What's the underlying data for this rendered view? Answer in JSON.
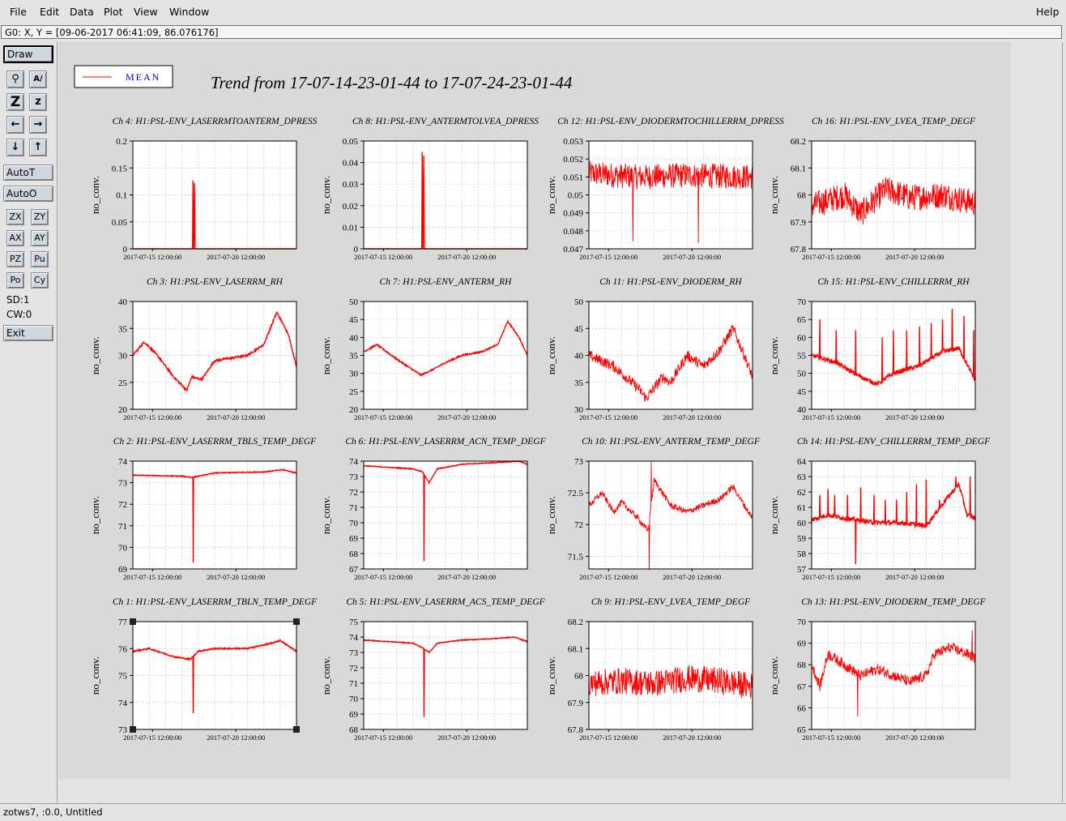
{
  "menubar": {
    "items": [
      "File",
      "Edit",
      "Data",
      "Plot",
      "View",
      "Window"
    ],
    "help": "Help"
  },
  "status_line": "G0: X, Y = [09-06-2017 06:41:09, 86.076176]",
  "toolbar": {
    "draw": "Draw",
    "autot": "AutoT",
    "autoo": "AutoO",
    "zx": "ZX",
    "zy": "ZY",
    "ax": "AX",
    "ay": "AY",
    "pz": "PZ",
    "pu": "Pu",
    "po": "Po",
    "cy": "Cy",
    "sd": "SD:1",
    "cw": "CW:0",
    "exit": "Exit",
    "icons": [
      "magnifier-icon",
      "text-size-icon",
      "zoom-in-z-icon",
      "zoom-out-z-icon",
      "arrow-left-icon",
      "arrow-right-icon",
      "arrow-down-icon",
      "arrow-up-icon"
    ]
  },
  "footer": "zotws7, :0.0, Untitled",
  "figure": {
    "title": "Trend from 17-07-14-23-01-44 to 17-07-24-23-01-44",
    "legend_label": "MEAN",
    "series_color": "#ff0000",
    "ylabel": "no_conv.",
    "xticks": [
      "2017-07-15 12:00:00",
      "2017-07-20 12:00:00"
    ]
  },
  "chart_data": [
    {
      "type": "line",
      "title": "Ch 4: H1:PSL-ENV_LASERRMTOANTERM_DPRESS",
      "ylabel": "no_conv.",
      "yticks": [
        "0",
        "0.05",
        "0.1",
        "0.15",
        "0.2"
      ],
      "ylim": [
        0,
        0.2
      ],
      "kind": "spike",
      "base": 0,
      "spike_at": 0.37,
      "spike_value": 0.127
    },
    {
      "type": "line",
      "title": "Ch 8: H1:PSL-ENV_ANTERMTOLVEA_DPRESS",
      "ylabel": "no_conv.",
      "yticks": [
        "0",
        "0.01",
        "0.02",
        "0.03",
        "0.04",
        "0.05"
      ],
      "ylim": [
        0,
        0.05
      ],
      "kind": "spike",
      "base": 0,
      "spike_at": 0.36,
      "spike_value": 0.045
    },
    {
      "type": "line",
      "title": "Ch 12: H1:PSL-ENV_DIODERMTOCHILLERRM_DPRESS",
      "ylabel": "no_conv.",
      "yticks": [
        "0.047",
        "0.048",
        "0.049",
        "0.05",
        "0.051",
        "0.052",
        "0.053"
      ],
      "ylim": [
        0.047,
        0.053
      ],
      "kind": "noisy",
      "anchors": [
        [
          0,
          0.0512
        ],
        [
          0.3,
          0.051
        ],
        [
          0.6,
          0.0511
        ],
        [
          1,
          0.051
        ]
      ],
      "noise": 0.0007,
      "dips": [
        [
          0.27,
          0.0474
        ],
        [
          0.67,
          0.0473
        ]
      ]
    },
    {
      "type": "line",
      "title": "Ch 16: H1:PSL-ENV_LVEA_TEMP_DEGF",
      "ylabel": "no_conv.",
      "yticks": [
        "67.8",
        "67.9",
        "68",
        "68.1",
        "68.2"
      ],
      "ylim": [
        67.8,
        68.2
      ],
      "kind": "noisy",
      "anchors": [
        [
          0,
          67.96
        ],
        [
          0.2,
          68.0
        ],
        [
          0.3,
          67.93
        ],
        [
          0.45,
          68.02
        ],
        [
          0.6,
          67.99
        ],
        [
          0.8,
          68.0
        ],
        [
          1,
          67.97
        ]
      ],
      "noise": 0.05,
      "dips": []
    },
    {
      "type": "line",
      "title": "Ch 3: H1:PSL-ENV_LASERRM_RH",
      "ylabel": "no_conv.",
      "yticks": [
        "20",
        "25",
        "30",
        "35",
        "40"
      ],
      "ylim": [
        20,
        40
      ],
      "kind": "smooth",
      "anchors": [
        [
          0,
          30
        ],
        [
          0.07,
          32.5
        ],
        [
          0.15,
          30
        ],
        [
          0.25,
          26
        ],
        [
          0.33,
          23.5
        ],
        [
          0.36,
          26
        ],
        [
          0.42,
          25.5
        ],
        [
          0.5,
          29
        ],
        [
          0.6,
          29.5
        ],
        [
          0.7,
          30
        ],
        [
          0.8,
          32
        ],
        [
          0.88,
          38
        ],
        [
          0.95,
          34
        ],
        [
          1,
          28
        ]
      ],
      "noise": 0.4
    },
    {
      "type": "line",
      "title": "Ch 7: H1:PSL-ENV_ANTERM_RH",
      "ylabel": "no_conv.",
      "yticks": [
        "20",
        "25",
        "30",
        "35",
        "40",
        "45",
        "50"
      ],
      "ylim": [
        20,
        50
      ],
      "kind": "smooth",
      "anchors": [
        [
          0,
          36
        ],
        [
          0.08,
          38
        ],
        [
          0.2,
          34
        ],
        [
          0.3,
          31
        ],
        [
          0.35,
          29.5
        ],
        [
          0.42,
          31
        ],
        [
          0.5,
          33
        ],
        [
          0.6,
          35
        ],
        [
          0.72,
          36
        ],
        [
          0.82,
          38
        ],
        [
          0.88,
          44.5
        ],
        [
          0.95,
          40
        ],
        [
          1,
          35
        ]
      ],
      "noise": 0.4
    },
    {
      "type": "line",
      "title": "Ch 11: H1:PSL-ENV_DIODERM_RH",
      "ylabel": "no_conv.",
      "yticks": [
        "30",
        "35",
        "40",
        "45",
        "50"
      ],
      "ylim": [
        30,
        50
      ],
      "kind": "noisy",
      "anchors": [
        [
          0,
          40
        ],
        [
          0.15,
          38
        ],
        [
          0.3,
          34
        ],
        [
          0.35,
          32
        ],
        [
          0.45,
          36
        ],
        [
          0.5,
          35
        ],
        [
          0.6,
          40
        ],
        [
          0.7,
          38
        ],
        [
          0.8,
          41
        ],
        [
          0.88,
          45
        ],
        [
          0.95,
          40
        ],
        [
          1,
          36
        ]
      ],
      "noise": 1.0,
      "dips": []
    },
    {
      "type": "line",
      "title": "Ch 15: H1:PSL-ENV_CHILLERRM_RH",
      "ylabel": "no_conv.",
      "yticks": [
        "40",
        "45",
        "50",
        "55",
        "60",
        "65",
        "70"
      ],
      "ylim": [
        40,
        70
      ],
      "kind": "spiky",
      "anchors": [
        [
          0,
          55
        ],
        [
          0.15,
          53
        ],
        [
          0.3,
          49
        ],
        [
          0.4,
          47
        ],
        [
          0.5,
          50
        ],
        [
          0.65,
          52
        ],
        [
          0.8,
          56
        ],
        [
          0.9,
          57
        ],
        [
          1,
          48
        ]
      ],
      "noise": 1.2,
      "spikes": [
        [
          0.05,
          65
        ],
        [
          0.15,
          62
        ],
        [
          0.27,
          62
        ],
        [
          0.43,
          60
        ],
        [
          0.5,
          62
        ],
        [
          0.58,
          62
        ],
        [
          0.66,
          63
        ],
        [
          0.73,
          64
        ],
        [
          0.8,
          65
        ],
        [
          0.86,
          68
        ],
        [
          0.93,
          66
        ],
        [
          0.99,
          62
        ]
      ]
    },
    {
      "type": "line",
      "title": "Ch 2: H1:PSL-ENV_LASERRM_TBLS_TEMP_DEGF",
      "ylabel": "no_conv.",
      "yticks": [
        "69",
        "70",
        "71",
        "72",
        "73",
        "74"
      ],
      "ylim": [
        69,
        74
      ],
      "kind": "smooth",
      "anchors": [
        [
          0,
          73.35
        ],
        [
          0.3,
          73.3
        ],
        [
          0.36,
          73.25
        ],
        [
          0.4,
          73.3
        ],
        [
          0.5,
          73.45
        ],
        [
          0.8,
          73.5
        ],
        [
          0.92,
          73.6
        ],
        [
          1,
          73.45
        ]
      ],
      "noise": 0.04,
      "dips": [
        [
          0.37,
          69.3
        ]
      ]
    },
    {
      "type": "line",
      "title": "Ch 6: H1:PSL-ENV_LASERRM_ACN_TEMP_DEGF",
      "ylabel": "no_conv.",
      "yticks": [
        "67",
        "68",
        "69",
        "70",
        "71",
        "72",
        "73",
        "74"
      ],
      "ylim": [
        67,
        74
      ],
      "kind": "smooth",
      "anchors": [
        [
          0,
          73.7
        ],
        [
          0.3,
          73.5
        ],
        [
          0.36,
          73.3
        ],
        [
          0.4,
          72.6
        ],
        [
          0.45,
          73.5
        ],
        [
          0.6,
          73.8
        ],
        [
          0.8,
          73.9
        ],
        [
          0.95,
          74
        ],
        [
          1,
          73.8
        ]
      ],
      "noise": 0.05,
      "dips": [
        [
          0.37,
          67.5
        ]
      ]
    },
    {
      "type": "line",
      "title": "Ch 10: H1:PSL-ENV_ANTERM_TEMP_DEGF",
      "ylabel": "no_conv.",
      "yticks": [
        "71.5",
        "72",
        "72.5",
        "73"
      ],
      "ylim": [
        71.3,
        73
      ],
      "kind": "noisy",
      "anchors": [
        [
          0,
          72.3
        ],
        [
          0.08,
          72.5
        ],
        [
          0.15,
          72.2
        ],
        [
          0.2,
          72.35
        ],
        [
          0.3,
          72.1
        ],
        [
          0.36,
          71.9
        ],
        [
          0.4,
          72.7
        ],
        [
          0.5,
          72.3
        ],
        [
          0.6,
          72.2
        ],
        [
          0.7,
          72.3
        ],
        [
          0.8,
          72.4
        ],
        [
          0.88,
          72.6
        ],
        [
          0.95,
          72.3
        ],
        [
          1,
          72.1
        ]
      ],
      "noise": 0.05,
      "dips": [
        [
          0.37,
          71.15
        ]
      ],
      "peaks": [
        [
          0.38,
          73
        ]
      ]
    },
    {
      "type": "line",
      "title": "Ch 14: H1:PSL-ENV_CHILLERRM_TEMP_DEGF",
      "ylabel": "no_conv.",
      "yticks": [
        "57",
        "58",
        "59",
        "60",
        "61",
        "62",
        "63",
        "64"
      ],
      "ylim": [
        57,
        64
      ],
      "kind": "spiky",
      "anchors": [
        [
          0,
          60.2
        ],
        [
          0.1,
          60.5
        ],
        [
          0.25,
          60.2
        ],
        [
          0.4,
          60
        ],
        [
          0.55,
          60
        ],
        [
          0.7,
          59.8
        ],
        [
          0.82,
          61.5
        ],
        [
          0.9,
          62.5
        ],
        [
          0.95,
          60.5
        ],
        [
          1,
          60.3
        ]
      ],
      "noise": 0.3,
      "spikes": [
        [
          0.05,
          61.8
        ],
        [
          0.1,
          62.2
        ],
        [
          0.14,
          61.8
        ],
        [
          0.22,
          61.8
        ],
        [
          0.3,
          62.3
        ],
        [
          0.38,
          61.8
        ],
        [
          0.45,
          61.5
        ],
        [
          0.52,
          61.5
        ],
        [
          0.58,
          62
        ],
        [
          0.64,
          62.5
        ],
        [
          0.7,
          62.8
        ],
        [
          0.78,
          61.5
        ],
        [
          0.88,
          63
        ],
        [
          0.97,
          63
        ]
      ],
      "dips": [
        [
          0.27,
          57.3
        ]
      ]
    },
    {
      "type": "line",
      "title": "Ch 1: H1:PSL-ENV_LASERRM_TBLN_TEMP_DEGF",
      "ylabel": "no_conv.",
      "yticks": [
        "73",
        "74",
        "75",
        "76",
        "77"
      ],
      "ylim": [
        73,
        77
      ],
      "kind": "smooth",
      "anchors": [
        [
          0,
          75.9
        ],
        [
          0.1,
          76
        ],
        [
          0.25,
          75.7
        ],
        [
          0.35,
          75.6
        ],
        [
          0.4,
          75.9
        ],
        [
          0.5,
          76
        ],
        [
          0.7,
          76
        ],
        [
          0.85,
          76.2
        ],
        [
          0.9,
          76.3
        ],
        [
          1,
          75.9
        ]
      ],
      "noise": 0.05,
      "dips": [
        [
          0.37,
          73.6
        ]
      ],
      "selected": true
    },
    {
      "type": "line",
      "title": "Ch 5: H1:PSL-ENV_LASERRM_ACS_TEMP_DEGF",
      "ylabel": "no_conv.",
      "yticks": [
        "68",
        "69",
        "70",
        "71",
        "72",
        "73",
        "74",
        "75"
      ],
      "ylim": [
        68,
        75
      ],
      "kind": "smooth",
      "anchors": [
        [
          0,
          73.8
        ],
        [
          0.3,
          73.6
        ],
        [
          0.36,
          73.3
        ],
        [
          0.4,
          73
        ],
        [
          0.45,
          73.6
        ],
        [
          0.6,
          73.8
        ],
        [
          0.8,
          73.9
        ],
        [
          0.92,
          74
        ],
        [
          1,
          73.7
        ]
      ],
      "noise": 0.05,
      "dips": [
        [
          0.37,
          68.8
        ]
      ]
    },
    {
      "type": "line",
      "title": "Ch 9: H1:PSL-ENV_LVEA_TEMP_DEGF",
      "ylabel": "no_conv.",
      "yticks": [
        "67.8",
        "67.9",
        "68",
        "68.1",
        "68.2"
      ],
      "ylim": [
        67.8,
        68.2
      ],
      "kind": "noisy",
      "anchors": [
        [
          0,
          67.97
        ],
        [
          0.2,
          67.98
        ],
        [
          0.4,
          67.97
        ],
        [
          0.6,
          67.99
        ],
        [
          0.8,
          67.98
        ],
        [
          1,
          67.96
        ]
      ],
      "noise": 0.05,
      "dips": []
    },
    {
      "type": "line",
      "title": "Ch 13: H1:PSL-ENV_DIODERM_TEMP_DEGF",
      "ylabel": "no_conv.",
      "yticks": [
        "65",
        "66",
        "67",
        "68",
        "69",
        "70"
      ],
      "ylim": [
        65,
        70
      ],
      "kind": "noisy",
      "anchors": [
        [
          0,
          68
        ],
        [
          0.05,
          67
        ],
        [
          0.1,
          68.5
        ],
        [
          0.2,
          68
        ],
        [
          0.3,
          67.5
        ],
        [
          0.4,
          67.8
        ],
        [
          0.5,
          67.5
        ],
        [
          0.6,
          67.2
        ],
        [
          0.7,
          67.5
        ],
        [
          0.75,
          68.5
        ],
        [
          0.85,
          68.8
        ],
        [
          0.95,
          68.5
        ],
        [
          1,
          68.3
        ]
      ],
      "noise": 0.25,
      "dips": [
        [
          0.28,
          65.6
        ]
      ],
      "peaks": [
        [
          0.98,
          69.6
        ]
      ]
    }
  ]
}
